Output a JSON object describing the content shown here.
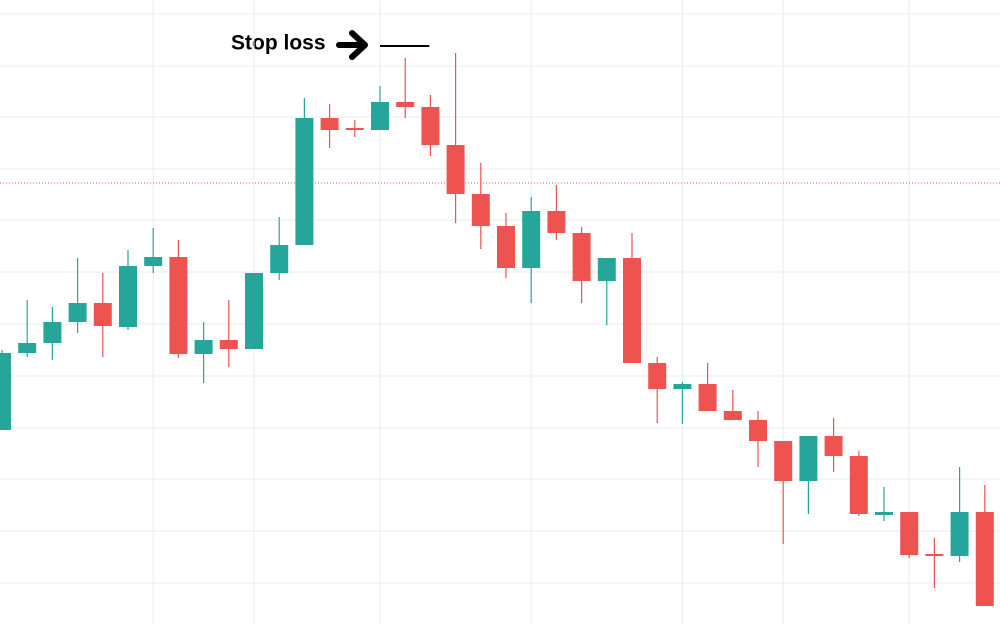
{
  "chart_data": {
    "type": "candlestick",
    "categories": [
      null,
      null,
      null,
      null,
      null,
      null,
      null,
      null,
      null,
      null,
      null,
      null,
      null,
      null,
      null,
      null,
      null,
      null,
      null,
      null,
      null,
      null,
      null,
      null,
      null,
      null,
      null,
      null,
      null,
      null,
      null,
      null,
      null,
      null,
      null,
      null,
      null,
      null,
      null,
      null
    ],
    "open": [
      194,
      271,
      281,
      302,
      321,
      297,
      358,
      367,
      270,
      284,
      275,
      351,
      379,
      506,
      496,
      494,
      522,
      517,
      479,
      430,
      398,
      356,
      413,
      391,
      343,
      366,
      261,
      235,
      240,
      213,
      204,
      183,
      143,
      188,
      168,
      109,
      112,
      70,
      68,
      112
    ],
    "high": [
      274,
      324,
      317,
      366,
      351,
      374,
      396,
      384,
      302,
      324,
      351,
      407,
      526,
      520,
      504,
      538,
      566,
      529,
      571,
      461,
      411,
      427,
      439,
      397,
      366,
      391,
      267,
      242,
      261,
      234,
      213,
      183,
      188,
      206,
      173,
      137,
      112,
      86,
      157,
      139
    ],
    "low": [
      194,
      267,
      264,
      291,
      267,
      294,
      351,
      266,
      241,
      257,
      275,
      344,
      379,
      476,
      487,
      494,
      506,
      468,
      401,
      375,
      346,
      321,
      384,
      321,
      299,
      261,
      201,
      200,
      213,
      204,
      157,
      80,
      110,
      152,
      108,
      103,
      66,
      36,
      62,
      18
    ],
    "close": [
      271,
      281,
      302,
      321,
      298,
      358,
      367,
      270,
      284,
      275,
      351,
      379,
      506,
      494,
      494,
      522,
      517,
      479,
      430,
      398,
      356,
      413,
      391,
      343,
      366,
      261,
      235,
      240,
      213,
      204,
      183,
      143,
      188,
      168,
      110,
      112,
      69,
      68,
      112,
      18
    ],
    "up_color": "#26a69a",
    "down_color": "#ef5350",
    "ylim": [
      0,
      624
    ],
    "yticks": [
      610,
      558,
      507,
      455,
      404,
      352,
      300,
      248,
      196,
      145,
      93,
      41
    ],
    "xticks": [
      6,
      10,
      15,
      21,
      27,
      31,
      36
    ],
    "grid": true,
    "price_line": 441,
    "annotation": {
      "text": "Stop loss",
      "value": 578,
      "from": 15,
      "to": 17
    }
  }
}
